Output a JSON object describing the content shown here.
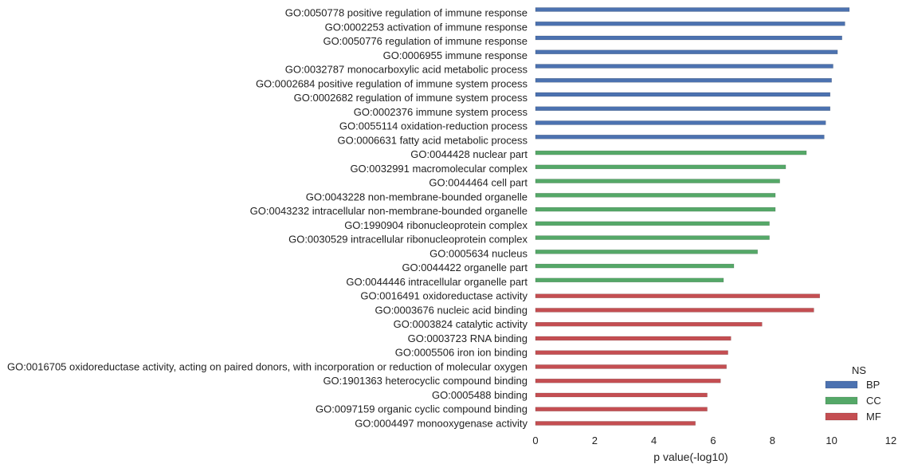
{
  "chart_data": {
    "type": "bar",
    "orientation": "horizontal",
    "xlabel": "p value(-log10)",
    "xlim": [
      0,
      12
    ],
    "xticks": [
      "0",
      "2",
      "4",
      "6",
      "8",
      "10",
      "12"
    ],
    "grid": false,
    "legend": {
      "title": "NS",
      "placement": "bottom-right",
      "entries": [
        {
          "name": "BP",
          "color": "#4c72b0"
        },
        {
          "name": "CC",
          "color": "#55a868"
        },
        {
          "name": "MF",
          "color": "#c44e52"
        }
      ]
    },
    "categories": [
      {
        "label": "GO:0050778 positive regulation of immune response",
        "group": "BP",
        "value": 10.6
      },
      {
        "label": "GO:0002253 activation of immune response",
        "group": "BP",
        "value": 10.45
      },
      {
        "label": "GO:0050776 regulation of immune response",
        "group": "BP",
        "value": 10.35
      },
      {
        "label": "GO:0006955 immune response",
        "group": "BP",
        "value": 10.2
      },
      {
        "label": "GO:0032787 monocarboxylic acid metabolic process",
        "group": "BP",
        "value": 10.05
      },
      {
        "label": "GO:0002684 positive regulation of immune system process",
        "group": "BP",
        "value": 10.0
      },
      {
        "label": "GO:0002682 regulation of immune system process",
        "group": "BP",
        "value": 9.95
      },
      {
        "label": "GO:0002376 immune system process",
        "group": "BP",
        "value": 9.95
      },
      {
        "label": "GO:0055114 oxidation-reduction process",
        "group": "BP",
        "value": 9.8
      },
      {
        "label": "GO:0006631 fatty acid metabolic process",
        "group": "BP",
        "value": 9.75
      },
      {
        "label": "GO:0044428 nuclear part",
        "group": "CC",
        "value": 9.15
      },
      {
        "label": "GO:0032991 macromolecular complex",
        "group": "CC",
        "value": 8.45
      },
      {
        "label": "GO:0044464 cell part",
        "group": "CC",
        "value": 8.25
      },
      {
        "label": "GO:0043228 non-membrane-bounded organelle",
        "group": "CC",
        "value": 8.1
      },
      {
        "label": "GO:0043232 intracellular non-membrane-bounded organelle",
        "group": "CC",
        "value": 8.1
      },
      {
        "label": "GO:1990904 ribonucleoprotein complex",
        "group": "CC",
        "value": 7.9
      },
      {
        "label": "GO:0030529 intracellular ribonucleoprotein complex",
        "group": "CC",
        "value": 7.9
      },
      {
        "label": "GO:0005634 nucleus",
        "group": "CC",
        "value": 7.5
      },
      {
        "label": "GO:0044422 organelle part",
        "group": "CC",
        "value": 6.7
      },
      {
        "label": "GO:0044446 intracellular organelle part",
        "group": "CC",
        "value": 6.35
      },
      {
        "label": "GO:0016491 oxidoreductase activity",
        "group": "MF",
        "value": 9.6
      },
      {
        "label": "GO:0003676 nucleic acid binding",
        "group": "MF",
        "value": 9.4
      },
      {
        "label": "GO:0003824 catalytic activity",
        "group": "MF",
        "value": 7.65
      },
      {
        "label": "GO:0003723 RNA binding",
        "group": "MF",
        "value": 6.6
      },
      {
        "label": "GO:0005506 iron ion binding",
        "group": "MF",
        "value": 6.5
      },
      {
        "label": "GO:0016705 oxidoreductase activity, acting on paired donors, with incorporation or reduction of molecular oxygen",
        "group": "MF",
        "value": 6.45
      },
      {
        "label": "GO:1901363 heterocyclic compound binding",
        "group": "MF",
        "value": 6.25
      },
      {
        "label": "GO:0005488 binding",
        "group": "MF",
        "value": 5.8
      },
      {
        "label": "GO:0097159 organic cyclic compound binding",
        "group": "MF",
        "value": 5.8
      },
      {
        "label": "GO:0004497 monooxygenase activity",
        "group": "MF",
        "value": 5.4
      }
    ]
  }
}
